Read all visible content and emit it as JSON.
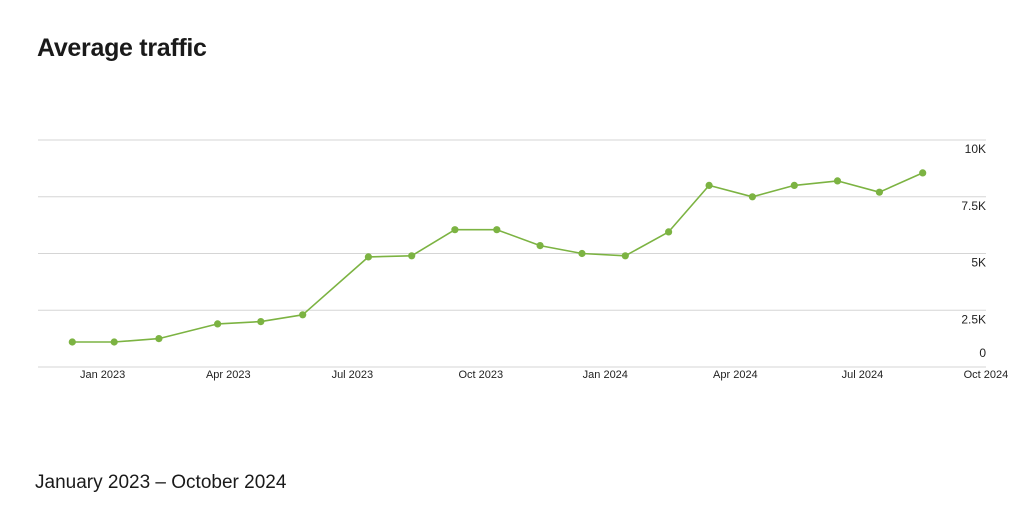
{
  "title": "Average traffic",
  "subtitle": "January 2023 – October 2024",
  "colors": {
    "line": "#7cb342",
    "grid": "#d5d5d5",
    "text": "#222222"
  },
  "chart_data": {
    "type": "line",
    "title": "Average traffic",
    "subtitle": "January 2023 – October 2024",
    "grid": true,
    "legend": "none",
    "ylim": [
      0,
      10000
    ],
    "y_ticks": [
      {
        "value": 10000,
        "label": "10K"
      },
      {
        "value": 7500,
        "label": "7.5K"
      },
      {
        "value": 5000,
        "label": "5K"
      },
      {
        "value": 2500,
        "label": "2.5K"
      },
      {
        "value": 0,
        "label": "0"
      }
    ],
    "x_ticks": [
      "Jan 2023",
      "Apr 2023",
      "Jul 2023",
      "Oct 2023",
      "Jan 2024",
      "Apr 2024",
      "Jul 2024",
      "Oct 2024"
    ],
    "series": [
      {
        "values": [
          {
            "x": "2022-12-01",
            "y": 1100
          },
          {
            "x": "2022-12-31",
            "y": 1100
          },
          {
            "x": "2023-02-01",
            "y": 1250
          },
          {
            "x": "2023-03-15",
            "y": 1900
          },
          {
            "x": "2023-04-15",
            "y": 2000
          },
          {
            "x": "2023-05-15",
            "y": 2300
          },
          {
            "x": "2023-07-01",
            "y": 4850
          },
          {
            "x": "2023-08-01",
            "y": 4900
          },
          {
            "x": "2023-09-01",
            "y": 6050
          },
          {
            "x": "2023-10-01",
            "y": 6050
          },
          {
            "x": "2023-11-01",
            "y": 5350
          },
          {
            "x": "2023-12-01",
            "y": 5000
          },
          {
            "x": "2024-01-01",
            "y": 4900
          },
          {
            "x": "2024-02-01",
            "y": 5950
          },
          {
            "x": "2024-03-01",
            "y": 8000
          },
          {
            "x": "2024-04-01",
            "y": 7500
          },
          {
            "x": "2024-05-01",
            "y": 8000
          },
          {
            "x": "2024-06-01",
            "y": 8200
          },
          {
            "x": "2024-07-01",
            "y": 7700
          },
          {
            "x": "2024-08-01",
            "y": 8550
          }
        ]
      }
    ]
  }
}
